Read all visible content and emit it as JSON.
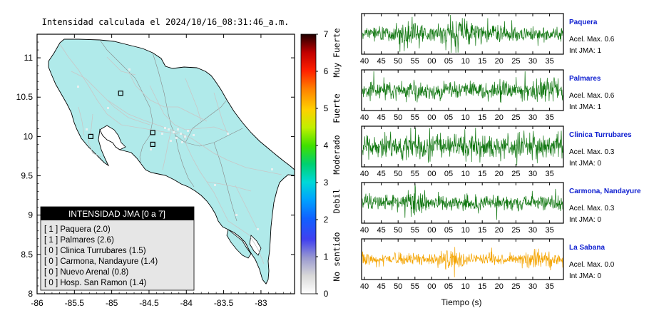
{
  "map": {
    "title": "Intensidad calculada el 2024/10/16_08:31:46_a.m.",
    "x_ticks": [
      "-86",
      "-85.5",
      "-85",
      "-84.5",
      "-84",
      "-83.5",
      "-83"
    ],
    "y_ticks": [
      "11",
      "10.5",
      "10",
      "9.5",
      "9",
      "8.5",
      "8"
    ],
    "land_color": "#b0eaea",
    "colorbar": {
      "tick_labels": [
        "7",
        "6",
        "5",
        "4",
        "3",
        "2",
        "1",
        "0"
      ],
      "categories": [
        "Muy Fuerte",
        "Fuerte",
        "Moderado",
        "Debil",
        "No sentido"
      ]
    },
    "legend": {
      "title": "INTENSIDAD JMA [0 a 7]",
      "items": [
        "[ 1 ]  Paquera (2.0)",
        "[ 1 ]  Palmares (2.6)",
        "[ 0 ]  Clinica Turrubares (1.5)",
        "[ 0 ]  Carmona, Nandayure (1.4)",
        "[ 0 ]  Nuevo Arenal (0.8)",
        "[ 0 ]  Hosp. San Ramon (1.4)"
      ]
    },
    "station_markers": [
      {
        "lon": -84.88,
        "lat": 10.55
      },
      {
        "lon": -85.28,
        "lat": 10.0
      },
      {
        "lon": -84.45,
        "lat": 10.05
      },
      {
        "lon": -84.45,
        "lat": 9.9
      }
    ]
  },
  "seismograms": {
    "x_tick_labels": [
      "40",
      "45",
      "50",
      "55",
      "00",
      "05",
      "10",
      "15",
      "20",
      "25",
      "30",
      "35"
    ],
    "xlabel": "Tiempo (s)",
    "stations": [
      {
        "name": "Paquera",
        "accel": "Acel. Max. 0.6",
        "jma": "Int JMA: 1",
        "color": "#117711"
      },
      {
        "name": "Palmares",
        "accel": "Acel. Max. 0.6",
        "jma": "Int JMA: 1",
        "color": "#117711"
      },
      {
        "name": "Clinica Turrubares",
        "accel": "Acel. Max. 0.3",
        "jma": "Int JMA: 0",
        "color": "#117711"
      },
      {
        "name": "Carmona, Nandayure",
        "accel": "Acel. Max. 0.3",
        "jma": "Int JMA: 0",
        "color": "#117711"
      },
      {
        "name": "La Sabana",
        "accel": "Acel. Max. 0.0",
        "jma": "Int JMA: 0",
        "color": "#f4a400"
      }
    ],
    "station_name_color": "#1020d0"
  }
}
